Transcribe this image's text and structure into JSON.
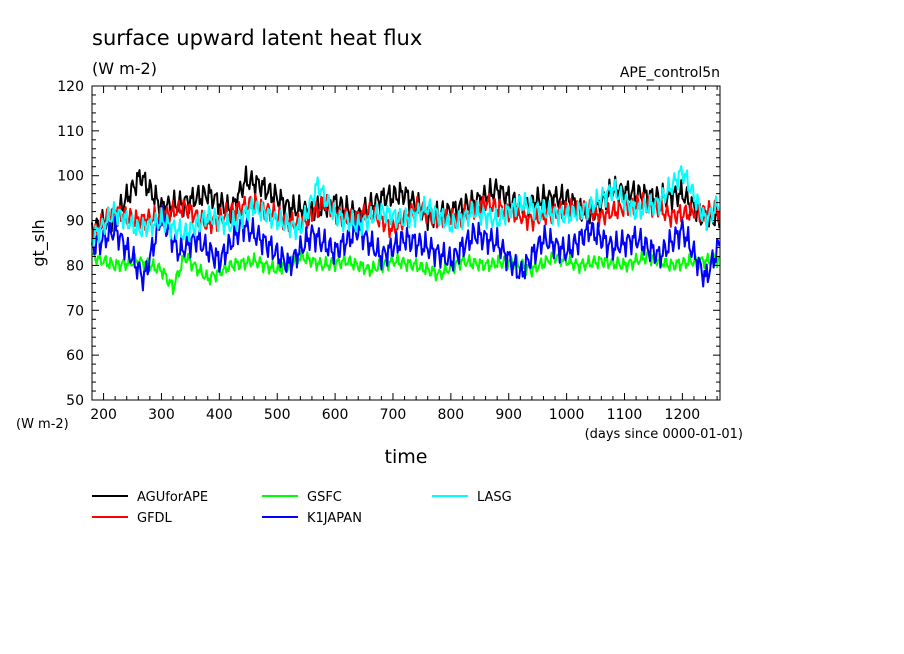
{
  "chart_data": {
    "type": "line",
    "title": "surface upward latent heat flux",
    "units_label": "(W m-2)",
    "dataset_label": "APE_control5n",
    "xlabel": "time",
    "x_units": "(days since 0000-01-01)",
    "ylabel": "gt_slh",
    "y_units": "(W m-2)",
    "xlim": [
      180,
      1265
    ],
    "ylim": [
      50,
      120
    ],
    "xticks": [
      200,
      300,
      400,
      500,
      600,
      700,
      800,
      900,
      1000,
      1100,
      1200
    ],
    "yticks": [
      50,
      60,
      70,
      80,
      90,
      100,
      110,
      120
    ],
    "grid": false,
    "legend_position": "bottom",
    "series": [
      {
        "name": "AGUforAPE",
        "color": "#000000",
        "x": [
          180,
          220,
          264,
          300,
          340,
          380,
          420,
          445,
          470,
          520,
          560,
          600,
          640,
          680,
          720,
          760,
          800,
          840,
          880,
          920,
          960,
          1000,
          1040,
          1080,
          1120,
          1160,
          1200,
          1240,
          1265
        ],
        "values": [
          88,
          91,
          100,
          93,
          94,
          96,
          92,
          99,
          98,
          93,
          92,
          94,
          91,
          95,
          96,
          91,
          92,
          94,
          97,
          93,
          95,
          95,
          91,
          97,
          96,
          95,
          96,
          90,
          91
        ]
      },
      {
        "name": "GFDL",
        "color": "#ff0000",
        "x": [
          180,
          220,
          260,
          300,
          340,
          380,
          420,
          460,
          500,
          540,
          580,
          620,
          660,
          700,
          740,
          780,
          820,
          860,
          900,
          940,
          980,
          1020,
          1060,
          1100,
          1140,
          1180,
          1220,
          1265
        ],
        "values": [
          87,
          92,
          90,
          91,
          93,
          89,
          92,
          94,
          91,
          89,
          94,
          90,
          92,
          88,
          93,
          90,
          91,
          94,
          92,
          90,
          92,
          93,
          91,
          93,
          94,
          91,
          92,
          92
        ]
      },
      {
        "name": "GSFC",
        "color": "#00ff00",
        "x": [
          180,
          220,
          260,
          300,
          320,
          340,
          380,
          420,
          460,
          500,
          540,
          580,
          620,
          660,
          700,
          740,
          780,
          820,
          860,
          900,
          940,
          980,
          1020,
          1060,
          1100,
          1140,
          1180,
          1220,
          1265
        ],
        "values": [
          82,
          80,
          81,
          79,
          75,
          82,
          77,
          80,
          81,
          79,
          82,
          80,
          81,
          79,
          81,
          80,
          78,
          81,
          80,
          81,
          79,
          82,
          80,
          81,
          80,
          82,
          80,
          81,
          81
        ]
      },
      {
        "name": "K1JAPAN",
        "color": "#0000ff",
        "x": [
          180,
          220,
          270,
          300,
          330,
          360,
          400,
          440,
          480,
          520,
          560,
          600,
          640,
          680,
          720,
          760,
          800,
          840,
          880,
          920,
          960,
          1000,
          1040,
          1080,
          1120,
          1160,
          1200,
          1240,
          1265
        ],
        "values": [
          84,
          88,
          77,
          91,
          83,
          86,
          81,
          89,
          85,
          80,
          87,
          83,
          88,
          82,
          86,
          84,
          81,
          87,
          85,
          78,
          86,
          83,
          88,
          84,
          86,
          82,
          88,
          77,
          85
        ]
      },
      {
        "name": "LASG",
        "color": "#00ffff",
        "x": [
          180,
          220,
          260,
          300,
          340,
          380,
          420,
          460,
          500,
          540,
          570,
          600,
          640,
          680,
          720,
          760,
          800,
          840,
          880,
          920,
          960,
          1000,
          1040,
          1080,
          1120,
          1160,
          1200,
          1240,
          1265
        ],
        "values": [
          86,
          92,
          88,
          90,
          87,
          91,
          89,
          93,
          90,
          88,
          98,
          91,
          89,
          92,
          90,
          93,
          89,
          92,
          90,
          94,
          92,
          91,
          93,
          97,
          92,
          94,
          101,
          90,
          94
        ]
      }
    ]
  }
}
